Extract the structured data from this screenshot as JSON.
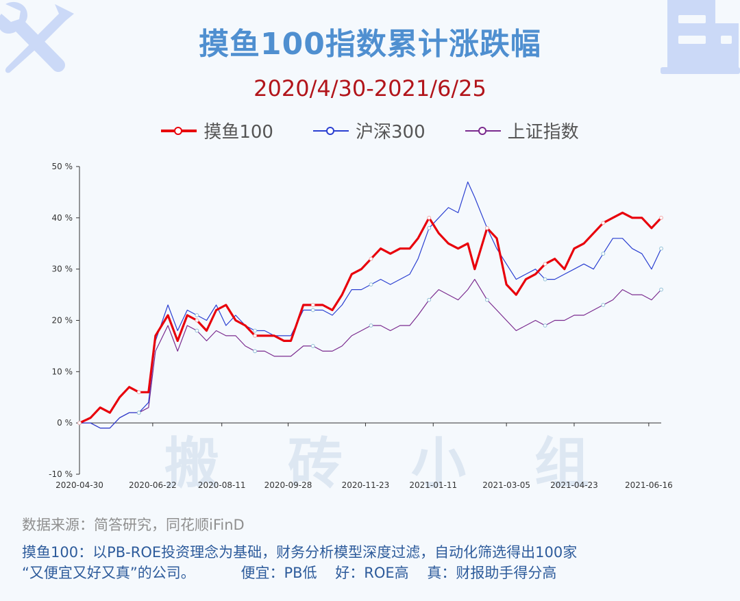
{
  "title": "摸鱼100指数累计涨跌幅",
  "subtitle": "2020/4/30-2021/6/25",
  "source": "数据来源：简答研究，同花顺iFinD",
  "notes": {
    "line1": "摸鱼100：以PB-ROE投资理念为基础，财务分析模型深度过滤，自动化筛选得出100家",
    "line2": "“又便宜又好又真”的公司。          便宜：PB低    好：ROE高    真：财报助手得分高"
  },
  "watermark": [
    "搬",
    "砖",
    "小",
    "组"
  ],
  "icons": {
    "left": "tools-icon",
    "right": "building-icon"
  },
  "colors": {
    "moyu": "#e8000b",
    "hs300": "#2a3fd1",
    "sz": "#7a2a8e",
    "title": "#4f8fd0",
    "subtitle": "#b2151b"
  },
  "chart_data": {
    "type": "line",
    "title": "摸鱼100指数累计涨跌幅",
    "subtitle": "2020/4/30-2021/6/25",
    "legend_position": "top",
    "grid": false,
    "ylim": [
      -10,
      50
    ],
    "y_ticks": [
      -10,
      0,
      10,
      20,
      30,
      40,
      50
    ],
    "y_tick_labels": [
      "-10 %",
      "0 %",
      "10 %",
      "20 %",
      "30 %",
      "40 %",
      "50 %"
    ],
    "x_ticks": [
      "2020-04-30",
      "2020-06-22",
      "2020-08-11",
      "2020-09-28",
      "2020-11-23",
      "2021-01-11",
      "2021-03-05",
      "2021-04-23",
      "2021-06-16"
    ],
    "x": [
      "2020-04-30",
      "2020-05-08",
      "2020-05-15",
      "2020-05-22",
      "2020-05-29",
      "2020-06-05",
      "2020-06-12",
      "2020-06-19",
      "2020-06-24",
      "2020-07-03",
      "2020-07-10",
      "2020-07-17",
      "2020-07-24",
      "2020-07-31",
      "2020-08-07",
      "2020-08-14",
      "2020-08-21",
      "2020-08-28",
      "2020-09-04",
      "2020-09-11",
      "2020-09-18",
      "2020-09-25",
      "2020-09-30",
      "2020-10-09",
      "2020-10-16",
      "2020-10-23",
      "2020-10-30",
      "2020-11-06",
      "2020-11-13",
      "2020-11-20",
      "2020-11-27",
      "2020-12-04",
      "2020-12-11",
      "2020-12-18",
      "2020-12-25",
      "2020-12-31",
      "2021-01-08",
      "2021-01-15",
      "2021-01-22",
      "2021-01-29",
      "2021-02-05",
      "2021-02-10",
      "2021-02-19",
      "2021-02-26",
      "2021-03-05",
      "2021-03-12",
      "2021-03-19",
      "2021-03-26",
      "2021-04-02",
      "2021-04-09",
      "2021-04-16",
      "2021-04-23",
      "2021-04-30",
      "2021-05-07",
      "2021-05-14",
      "2021-05-21",
      "2021-05-28",
      "2021-06-04",
      "2021-06-11",
      "2021-06-18",
      "2021-06-25"
    ],
    "series": [
      {
        "name": "摸鱼100",
        "values": [
          0,
          1,
          3,
          2,
          5,
          7,
          6,
          6,
          17,
          21,
          16,
          21,
          20,
          18,
          22,
          23,
          20,
          19,
          17,
          17,
          17,
          16,
          16,
          23,
          23,
          23,
          22,
          25,
          29,
          30,
          32,
          34,
          33,
          34,
          34,
          36,
          40,
          37,
          35,
          34,
          35,
          30,
          38,
          36,
          27,
          25,
          28,
          29,
          31,
          32,
          30,
          34,
          35,
          37,
          39,
          40,
          41,
          40,
          40,
          38,
          40
        ]
      },
      {
        "name": "沪深300",
        "values": [
          0,
          0,
          -1,
          -1,
          1,
          2,
          2,
          4,
          16,
          23,
          18,
          22,
          21,
          20,
          23,
          19,
          21,
          19,
          18,
          18,
          17,
          17,
          17,
          22,
          22,
          22,
          21,
          23,
          26,
          26,
          27,
          28,
          27,
          28,
          29,
          32,
          38,
          40,
          42,
          41,
          47,
          44,
          38,
          34,
          31,
          28,
          29,
          30,
          28,
          28,
          29,
          30,
          31,
          30,
          33,
          36,
          36,
          34,
          33,
          30,
          34
        ]
      },
      {
        "name": "上证指数",
        "values": [
          0,
          0,
          -1,
          -1,
          1,
          2,
          2,
          3,
          14,
          19,
          14,
          19,
          18,
          16,
          18,
          17,
          17,
          15,
          14,
          14,
          13,
          13,
          13,
          15,
          15,
          14,
          14,
          15,
          17,
          18,
          19,
          19,
          18,
          19,
          19,
          21,
          24,
          26,
          25,
          24,
          26,
          28,
          24,
          22,
          20,
          18,
          19,
          20,
          19,
          20,
          20,
          21,
          21,
          22,
          23,
          24,
          26,
          25,
          25,
          24,
          26
        ]
      }
    ]
  }
}
